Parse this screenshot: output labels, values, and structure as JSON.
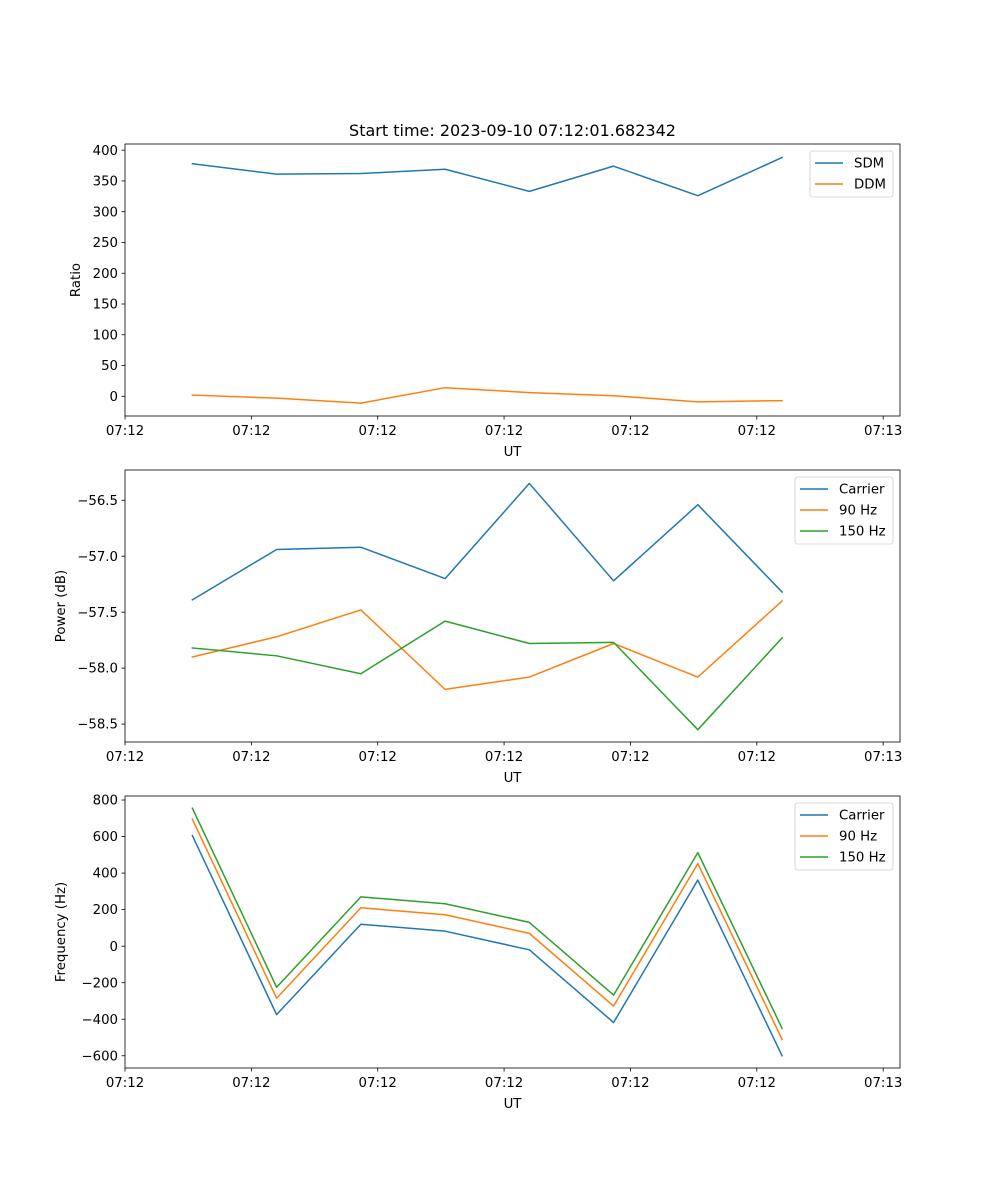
{
  "colors": {
    "c0": "#1f77b4",
    "c1": "#ff7f0e",
    "c2": "#2ca02c",
    "legend_border": "#cccccc",
    "axis": "#000000"
  },
  "figure_title": "Start time: 2023-09-10 07:12:01.682342",
  "chart_data": [
    {
      "type": "line",
      "title": "Start time: 2023-09-10 07:12:01.682342",
      "xlabel": "UT",
      "ylabel": "Ratio",
      "x": [
        1,
        2,
        3,
        4,
        5,
        6,
        7,
        8
      ],
      "xlim": [
        0.2,
        9.4
      ],
      "xticks": [
        0.2,
        1.7,
        3.2,
        4.7,
        6.2,
        7.7,
        9.2
      ],
      "xtick_labels": [
        "07:12",
        "07:12",
        "07:12",
        "07:12",
        "07:12",
        "07:12",
        "07:13"
      ],
      "ylim": [
        -32,
        410
      ],
      "yticks": [
        0,
        50,
        100,
        150,
        200,
        250,
        300,
        350,
        400
      ],
      "ytick_labels": [
        "0",
        "50",
        "100",
        "150",
        "200",
        "250",
        "300",
        "350",
        "400"
      ],
      "legend": "top-right",
      "series": [
        {
          "name": "SDM",
          "color_key": "c0",
          "values": [
            378,
            361,
            362,
            369,
            333,
            374,
            326,
            388
          ]
        },
        {
          "name": "DDM",
          "color_key": "c1",
          "values": [
            2,
            -3,
            -11,
            14,
            6,
            1,
            -9,
            -7
          ]
        }
      ]
    },
    {
      "type": "line",
      "title": "",
      "xlabel": "UT",
      "ylabel": "Power (dB)",
      "x": [
        1,
        2,
        3,
        4,
        5,
        6,
        7,
        8
      ],
      "xlim": [
        0.2,
        9.4
      ],
      "xticks": [
        0.2,
        1.7,
        3.2,
        4.7,
        6.2,
        7.7,
        9.2
      ],
      "xtick_labels": [
        "07:12",
        "07:12",
        "07:12",
        "07:12",
        "07:12",
        "07:12",
        "07:13"
      ],
      "ylim": [
        -58.66,
        -56.23
      ],
      "yticks": [
        -58.5,
        -58.0,
        -57.5,
        -57.0,
        -56.5
      ],
      "ytick_labels": [
        "−58.5",
        "−58.0",
        "−57.5",
        "−57.0",
        "−56.5"
      ],
      "legend": "top-right",
      "series": [
        {
          "name": "Carrier",
          "color_key": "c0",
          "values": [
            -57.39,
            -56.94,
            -56.92,
            -57.2,
            -56.35,
            -57.22,
            -56.54,
            -57.32
          ]
        },
        {
          "name": "90 Hz",
          "color_key": "c1",
          "values": [
            -57.9,
            -57.72,
            -57.48,
            -58.19,
            -58.08,
            -57.78,
            -58.08,
            -57.4
          ]
        },
        {
          "name": "150 Hz",
          "color_key": "c2",
          "values": [
            -57.82,
            -57.89,
            -58.05,
            -57.58,
            -57.78,
            -57.77,
            -58.55,
            -57.73
          ]
        }
      ]
    },
    {
      "type": "line",
      "title": "",
      "xlabel": "UT",
      "ylabel": "Frequency (Hz)",
      "x": [
        1,
        2,
        3,
        4,
        5,
        6,
        7,
        8
      ],
      "xlim": [
        0.2,
        9.4
      ],
      "xticks": [
        0.2,
        1.7,
        3.2,
        4.7,
        6.2,
        7.7,
        9.2
      ],
      "xtick_labels": [
        "07:12",
        "07:12",
        "07:12",
        "07:12",
        "07:12",
        "07:12",
        "07:13"
      ],
      "ylim": [
        -667,
        822
      ],
      "yticks": [
        -600,
        -400,
        -200,
        0,
        200,
        400,
        600,
        800
      ],
      "ytick_labels": [
        "−600",
        "−400",
        "−200",
        "0",
        "200",
        "400",
        "600",
        "800"
      ],
      "legend": "top-right",
      "series": [
        {
          "name": "Carrier",
          "color_key": "c0",
          "values": [
            605,
            -375,
            120,
            82,
            -20,
            -418,
            362,
            -600
          ]
        },
        {
          "name": "90 Hz",
          "color_key": "c1",
          "values": [
            695,
            -285,
            210,
            172,
            70,
            -328,
            452,
            -510
          ]
        },
        {
          "name": "150 Hz",
          "color_key": "c2",
          "values": [
            755,
            -225,
            270,
            232,
            130,
            -268,
            512,
            -450
          ]
        }
      ]
    }
  ]
}
